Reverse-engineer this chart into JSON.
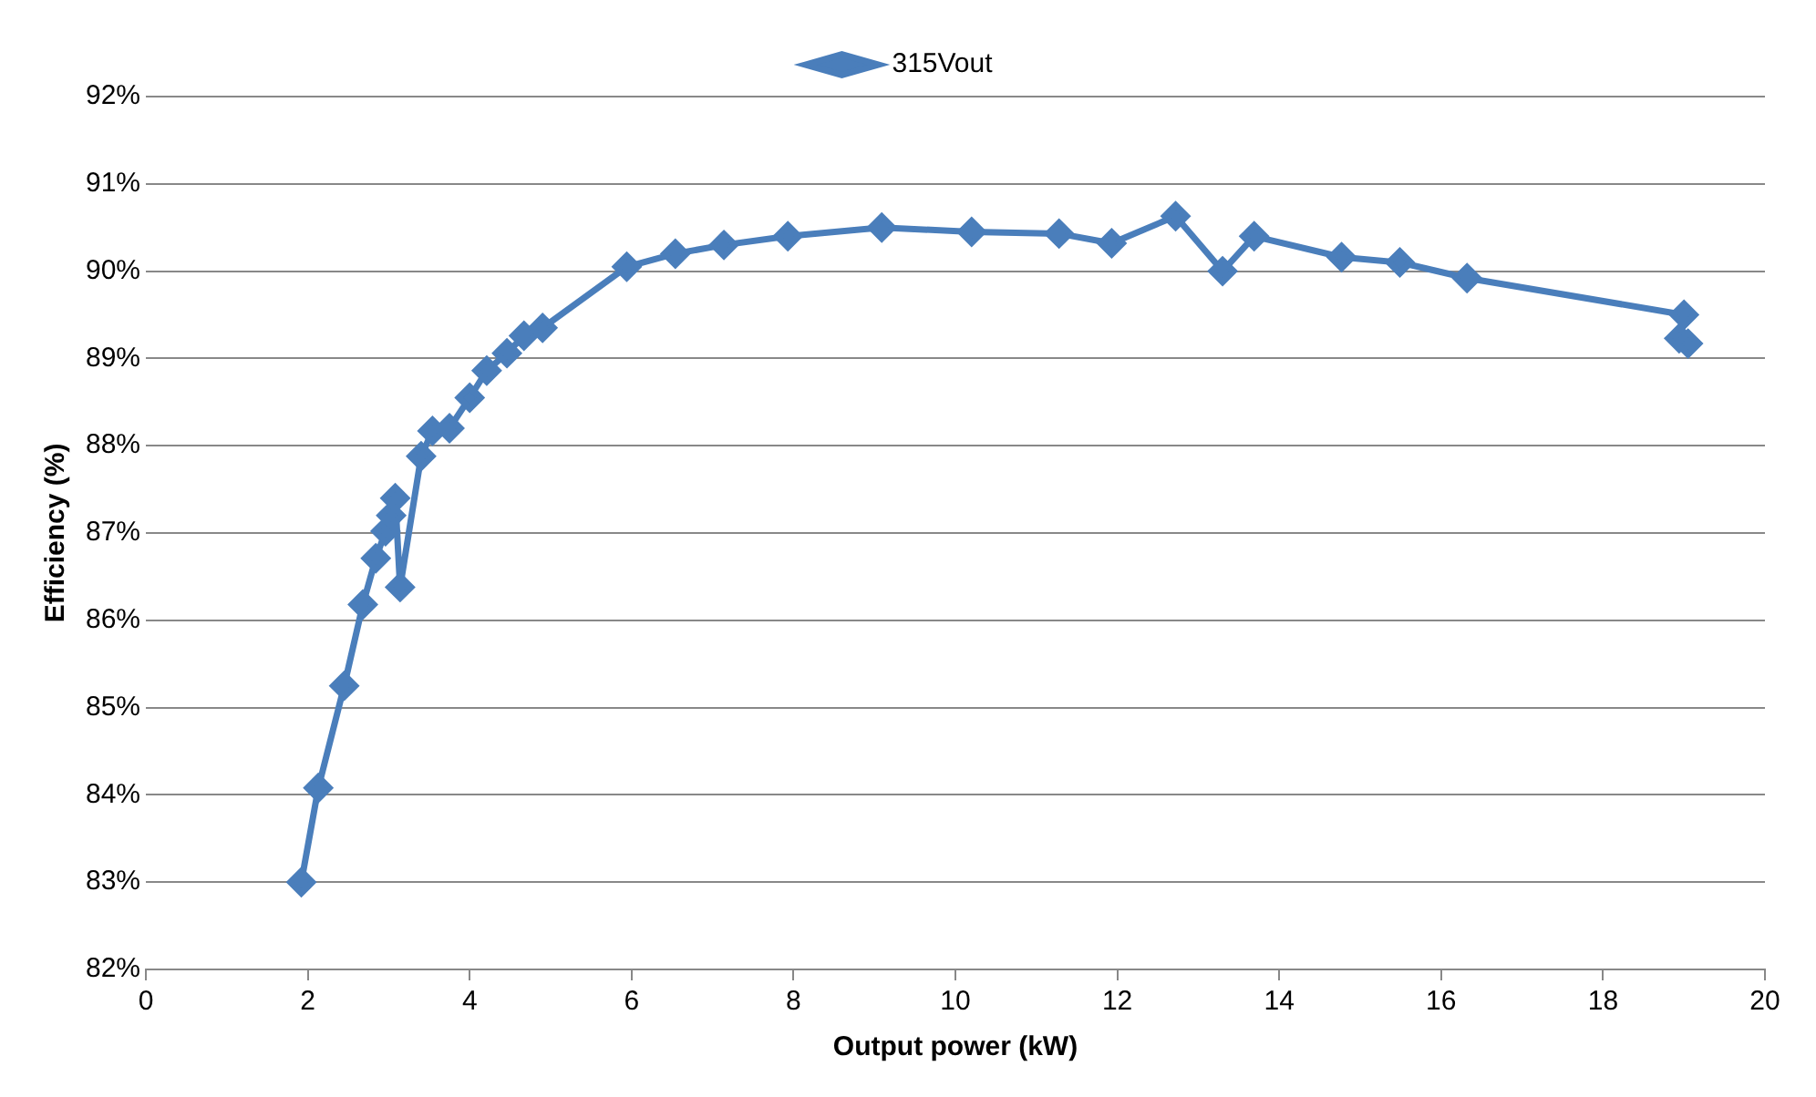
{
  "chart_data": {
    "type": "line",
    "xlabel": "Output power (kW)",
    "ylabel": "Efficiency (%)",
    "legend": "top",
    "grid": "y",
    "marker": "diamond",
    "line_style": "solid",
    "xlim": [
      0,
      20
    ],
    "xticks": [
      0,
      2,
      4,
      6,
      8,
      10,
      12,
      14,
      16,
      18,
      20
    ],
    "ylim": [
      82,
      92
    ],
    "yticks": [
      {
        "value": 82,
        "label": "82%"
      },
      {
        "value": 83,
        "label": "83%"
      },
      {
        "value": 84,
        "label": "84%"
      },
      {
        "value": 85,
        "label": "85%"
      },
      {
        "value": 86,
        "label": "86%"
      },
      {
        "value": 87,
        "label": "87%"
      },
      {
        "value": 88,
        "label": "88%"
      },
      {
        "value": 89,
        "label": "89%"
      },
      {
        "value": 90,
        "label": "90%"
      },
      {
        "value": 91,
        "label": "91%"
      },
      {
        "value": 92,
        "label": "92%"
      }
    ],
    "series": [
      {
        "name": "315Vout",
        "color": "#4a7ebb",
        "x": [
          1.92,
          2.13,
          2.45,
          2.68,
          2.84,
          2.96,
          3.03,
          3.08,
          3.14,
          3.4,
          3.54,
          3.75,
          4.0,
          4.21,
          4.46,
          4.67,
          4.9,
          5.94,
          6.54,
          7.14,
          7.93,
          9.09,
          10.2,
          11.28,
          11.93,
          12.72,
          13.3,
          13.69,
          14.77,
          15.49,
          16.32,
          19.0,
          18.94,
          19.05
        ],
        "values": [
          83.0,
          84.08,
          85.25,
          86.18,
          86.71,
          87.02,
          87.2,
          87.4,
          86.38,
          87.88,
          88.17,
          88.2,
          88.55,
          88.86,
          89.06,
          89.26,
          89.35,
          90.05,
          90.2,
          90.3,
          90.4,
          90.5,
          90.45,
          90.43,
          90.32,
          90.63,
          90.0,
          90.4,
          90.16,
          90.1,
          89.92,
          89.5,
          89.23,
          89.17
        ]
      }
    ]
  }
}
